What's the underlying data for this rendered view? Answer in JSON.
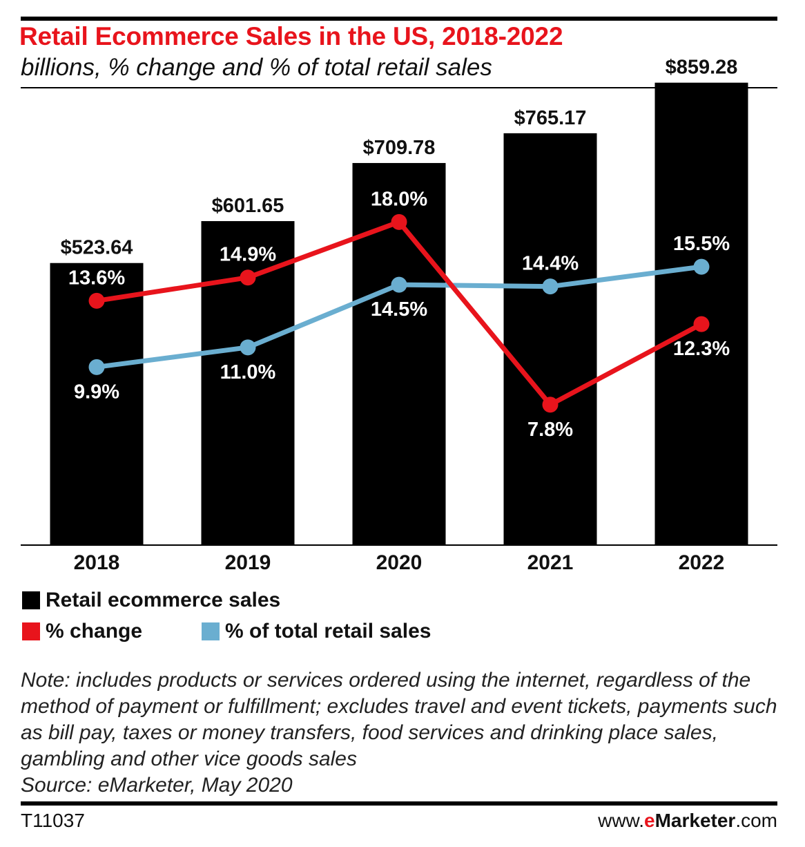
{
  "title": "Retail Ecommerce Sales in the US, 2018-2022",
  "subtitle": "billions, % change and % of total retail sales",
  "chart_data": {
    "type": "bar",
    "categories": [
      "2018",
      "2019",
      "2020",
      "2021",
      "2022"
    ],
    "series": [
      {
        "name": "Retail ecommerce sales",
        "kind": "bar",
        "values": [
          523.64,
          601.65,
          709.78,
          765.17,
          859.28
        ],
        "labels": [
          "$523.64",
          "$601.65",
          "$709.78",
          "$765.17",
          "$859.28"
        ],
        "color": "#000000"
      },
      {
        "name": "% change",
        "kind": "line",
        "values": [
          13.6,
          14.9,
          18.0,
          7.8,
          12.3
        ],
        "labels": [
          "13.6%",
          "14.9%",
          "18.0%",
          "7.8%",
          "12.3%"
        ],
        "color": "#e8141c"
      },
      {
        "name": "% of total retail sales",
        "kind": "line",
        "values": [
          9.9,
          11.0,
          14.5,
          14.4,
          15.5
        ],
        "labels": [
          "9.9%",
          "11.0%",
          "14.5%",
          "14.4%",
          "15.5%"
        ],
        "color": "#6aaed0"
      }
    ],
    "bar_ylim": [
      0,
      900
    ],
    "line_ylim": [
      0,
      27
    ],
    "grid": false,
    "legend_position": "bottom-left"
  },
  "legend": {
    "sales": "Retail ecommerce sales",
    "change": "% change",
    "share": "% of total retail sales"
  },
  "note": "Note: includes products or services ordered using the internet, regardless of the method of payment or fulfillment; excludes travel and event tickets, payments such as bill pay, taxes or money transfers, food services and drinking place sales, gambling and other vice goods sales",
  "source": "Source: eMarketer, May 2020",
  "chart_id": "T11037",
  "brand": {
    "prefix": "www.",
    "e": "e",
    "name": "Marketer",
    "suffix": ".com"
  },
  "colors": {
    "accent": "#e8141c",
    "bars": "#000000",
    "share_line": "#6aaed0"
  }
}
